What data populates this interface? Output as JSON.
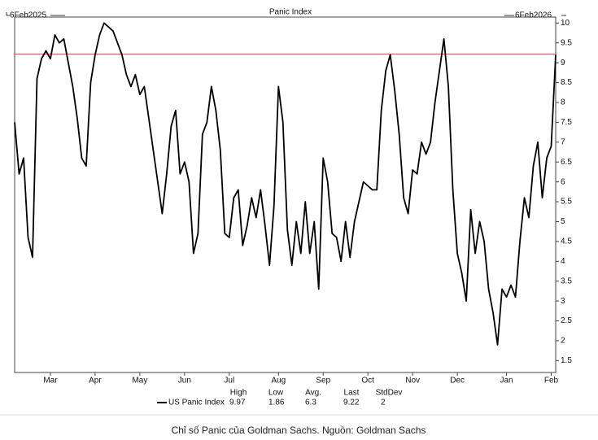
{
  "chart_data": {
    "type": "line",
    "title": "Panic Index",
    "start_label": "6Feb2025",
    "end_label": "6Feb2026",
    "categories": [
      null,
      null,
      null,
      null,
      null,
      null,
      null,
      null,
      "Mar",
      null,
      null,
      null,
      null,
      null,
      null,
      null,
      null,
      null,
      "Apr",
      null,
      null,
      null,
      null,
      null,
      null,
      null,
      null,
      null,
      "May",
      null,
      null,
      null,
      null,
      null,
      null,
      null,
      null,
      null,
      "Jun",
      null,
      null,
      null,
      null,
      null,
      null,
      null,
      null,
      null,
      "Jul",
      null,
      null,
      null,
      null,
      null,
      null,
      null,
      null,
      null,
      null,
      "Aug",
      null,
      null,
      null,
      null,
      null,
      null,
      null,
      null,
      null,
      "Sep",
      null,
      null,
      null,
      null,
      null,
      null,
      null,
      null,
      null,
      "Oct",
      null,
      null,
      null,
      null,
      null,
      null,
      null,
      null,
      null,
      "Nov",
      null,
      null,
      null,
      null,
      null,
      null,
      null,
      null,
      null,
      "Dec",
      null,
      null,
      null,
      null,
      null,
      null,
      null,
      null,
      null,
      null,
      "Jan",
      null,
      null,
      null,
      null,
      null,
      null,
      null,
      null,
      null,
      "Feb",
      null
    ],
    "series": [
      {
        "name": "US Panic Index",
        "color": "#000000",
        "values": [
          7.5,
          6.2,
          6.6,
          4.6,
          4.1,
          8.6,
          9.1,
          9.3,
          9.1,
          9.7,
          9.5,
          9.6,
          9.0,
          8.4,
          7.6,
          6.6,
          6.4,
          8.5,
          9.2,
          9.7,
          10.0,
          9.9,
          9.8,
          9.5,
          9.2,
          8.7,
          8.4,
          8.7,
          8.2,
          8.4,
          7.6,
          6.8,
          6.0,
          5.2,
          6.2,
          7.4,
          7.8,
          6.2,
          6.5,
          6.0,
          4.2,
          4.7,
          7.2,
          7.5,
          8.4,
          7.8,
          6.8,
          4.7,
          4.6,
          5.6,
          5.8,
          4.4,
          4.9,
          5.6,
          5.1,
          5.8,
          4.9,
          3.9,
          5.4,
          8.4,
          7.5,
          4.8,
          3.9,
          5.0,
          4.2,
          5.5,
          4.2,
          5.0,
          3.3,
          6.6,
          6.0,
          4.7,
          4.6,
          4.0,
          5.0,
          4.1,
          5.0,
          5.5,
          6.0,
          5.9,
          5.8,
          5.8,
          7.8,
          8.8,
          9.2,
          8.3,
          7.2,
          5.6,
          5.2,
          6.3,
          6.2,
          7.0,
          6.7,
          7.0,
          8.0,
          8.8,
          9.6,
          8.4,
          5.8,
          4.2,
          3.7,
          3.0,
          5.3,
          4.2,
          5.0,
          4.5,
          3.3,
          2.7,
          1.9,
          3.3,
          3.1,
          3.4,
          3.1,
          4.5,
          5.6,
          5.1,
          6.4,
          7.0,
          5.6,
          6.6,
          6.9,
          9.2
        ]
      }
    ],
    "ylim": [
      1.2,
      10.15
    ],
    "yticks": [
      1.5,
      2,
      2.5,
      3,
      3.5,
      4,
      4.5,
      5,
      5.5,
      6,
      6.5,
      7,
      7.5,
      8,
      8.5,
      9,
      9.5,
      10
    ],
    "y_axis_side": "right",
    "reference_color": "#c0504d",
    "stats": {
      "headers": [
        "High",
        "Low",
        "Avg.",
        "Last",
        "StdDev"
      ],
      "values": [
        9.97,
        1.86,
        6.3,
        9.22,
        2
      ]
    }
  },
  "caption": "Chỉ số Panic của Goldman Sachs. Nguồn: Goldman Sachs"
}
